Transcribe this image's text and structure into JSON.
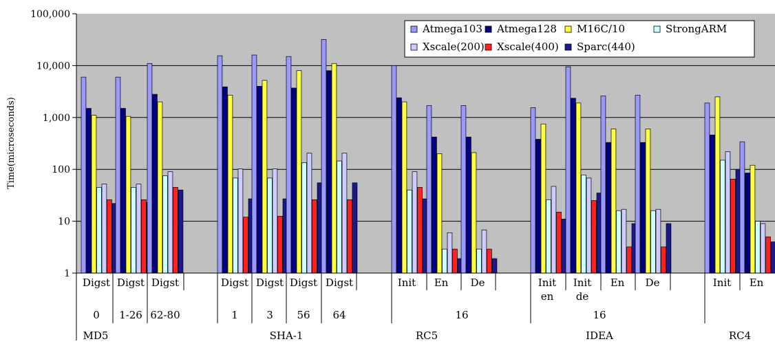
{
  "chart_data": {
    "type": "bar",
    "title": "",
    "xlabel": "",
    "ylabel": "Time(microseconds)",
    "yscale": "log",
    "ylim": [
      1,
      100000
    ],
    "yticks": [
      "1",
      "10",
      "100",
      "1,000",
      "10,000",
      "100,000"
    ],
    "grid": true,
    "legend_position": "top-right",
    "series": [
      {
        "name": "Atmega103",
        "color": "#9999ff"
      },
      {
        "name": "Atmega128",
        "color": "#000080"
      },
      {
        "name": "M16C/10",
        "color": "#ffff44"
      },
      {
        "name": "StrongARM",
        "color": "#ccffff"
      },
      {
        "name": "Xscale(200)",
        "color": "#ccccff"
      },
      {
        "name": "Xscale(400)",
        "color": "#ff2020"
      },
      {
        "name": "Sparc(440)",
        "color": "#1a1a8c"
      }
    ],
    "legend_order": [
      0,
      1,
      2,
      3,
      4,
      5,
      6
    ],
    "groups": [
      {
        "label": "Digst",
        "values": [
          6000,
          1500,
          1100,
          45,
          52,
          26,
          22
        ]
      },
      {
        "label": "Digst",
        "values": [
          6000,
          1500,
          1050,
          45,
          52,
          26,
          23
        ]
      },
      {
        "label": "Digst",
        "values": [
          11000,
          2800,
          2000,
          75,
          90,
          45,
          40
        ]
      },
      {
        "label": "Digst",
        "values": [
          15500,
          3900,
          2700,
          68,
          102,
          12,
          27
        ]
      },
      {
        "label": "Digst",
        "values": [
          16000,
          4000,
          5200,
          68,
          102,
          12.5,
          27
        ]
      },
      {
        "label": "Digst",
        "values": [
          15000,
          3700,
          8000,
          135,
          205,
          26,
          55
        ]
      },
      {
        "label": "Digst",
        "values": [
          32000,
          8000,
          11000,
          145,
          205,
          26,
          55
        ]
      },
      {
        "label": "Init",
        "values": [
          10000,
          2400,
          2000,
          40,
          90,
          45,
          27
        ]
      },
      {
        "label": "En",
        "values": [
          1700,
          420,
          200,
          2.9,
          6,
          2.9,
          1.9
        ]
      },
      {
        "label": "De",
        "values": [
          1700,
          420,
          210,
          2.9,
          6.8,
          2.9,
          1.9
        ]
      },
      {
        "label": "Init en",
        "values": [
          1550,
          380,
          750,
          26,
          47,
          15,
          11
        ]
      },
      {
        "label": "Init de",
        "values": [
          9500,
          2350,
          1900,
          78,
          68,
          25,
          35
        ]
      },
      {
        "label": "En",
        "values": [
          2600,
          330,
          600,
          16,
          17,
          3.2,
          9
        ]
      },
      {
        "label": "De",
        "values": [
          2700,
          330,
          600,
          16,
          17,
          3.2,
          9
        ]
      },
      {
        "label": "Init",
        "values": [
          1900,
          460,
          2500,
          150,
          220,
          65,
          100
        ]
      },
      {
        "label": "En",
        "values": [
          340,
          85,
          120,
          10,
          9,
          5,
          4
        ]
      }
    ],
    "sublabels": [
      "0",
      "1-26",
      "62-80",
      "1",
      "3",
      "56",
      "64",
      "16",
      "16"
    ],
    "algorithms": [
      "MD5",
      "SHA-1",
      "RC5",
      "IDEA",
      "RC4"
    ]
  }
}
